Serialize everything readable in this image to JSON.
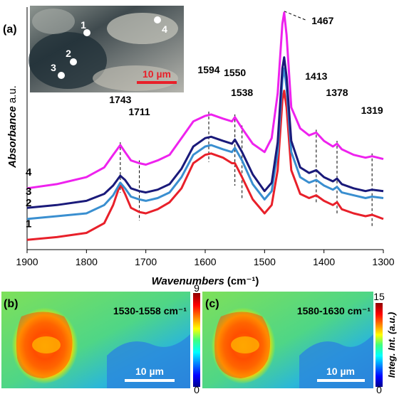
{
  "chart_data": [
    {
      "panel": "(a)",
      "type": "line",
      "xlabel": "Wavenumbers",
      "xlabel_unit": "(cm⁻¹)",
      "ylabel": "Absorbance",
      "ylabel_unit": "a.u.",
      "xlim": [
        1900,
        1300
      ],
      "x_reversed": true,
      "x_ticks": [
        "1900",
        "1800",
        "1700",
        "1600",
        "1500",
        "1400",
        "1300"
      ],
      "y_ticks_shown": false,
      "series": [
        {
          "name": "1",
          "color": "#e8202a",
          "points": [
            [
              1900,
              0.05
            ],
            [
              1850,
              0.07
            ],
            [
              1800,
              0.1
            ],
            [
              1770,
              0.17
            ],
            [
              1755,
              0.3
            ],
            [
              1743,
              0.45
            ],
            [
              1735,
              0.38
            ],
            [
              1725,
              0.28
            ],
            [
              1711,
              0.25
            ],
            [
              1700,
              0.24
            ],
            [
              1680,
              0.27
            ],
            [
              1660,
              0.32
            ],
            [
              1640,
              0.42
            ],
            [
              1620,
              0.6
            ],
            [
              1600,
              0.66
            ],
            [
              1590,
              0.67
            ],
            [
              1570,
              0.64
            ],
            [
              1555,
              0.6
            ],
            [
              1550,
              0.6
            ],
            [
              1538,
              0.5
            ],
            [
              1520,
              0.34
            ],
            [
              1500,
              0.24
            ],
            [
              1488,
              0.3
            ],
            [
              1478,
              0.55
            ],
            [
              1470,
              1.05
            ],
            [
              1467,
              1.12
            ],
            [
              1463,
              1.0
            ],
            [
              1455,
              0.55
            ],
            [
              1440,
              0.38
            ],
            [
              1425,
              0.35
            ],
            [
              1413,
              0.37
            ],
            [
              1400,
              0.33
            ],
            [
              1385,
              0.3
            ],
            [
              1378,
              0.32
            ],
            [
              1370,
              0.27
            ],
            [
              1350,
              0.24
            ],
            [
              1330,
              0.22
            ],
            [
              1319,
              0.23
            ],
            [
              1300,
              0.2
            ]
          ]
        },
        {
          "name": "2",
          "color": "#3a8fd0",
          "points": [
            [
              1900,
              0.2
            ],
            [
              1850,
              0.22
            ],
            [
              1800,
              0.24
            ],
            [
              1770,
              0.3
            ],
            [
              1755,
              0.37
            ],
            [
              1743,
              0.46
            ],
            [
              1735,
              0.42
            ],
            [
              1725,
              0.36
            ],
            [
              1711,
              0.34
            ],
            [
              1700,
              0.33
            ],
            [
              1680,
              0.35
            ],
            [
              1660,
              0.39
            ],
            [
              1640,
              0.5
            ],
            [
              1620,
              0.66
            ],
            [
              1600,
              0.72
            ],
            [
              1590,
              0.73
            ],
            [
              1570,
              0.7
            ],
            [
              1555,
              0.68
            ],
            [
              1550,
              0.71
            ],
            [
              1538,
              0.62
            ],
            [
              1520,
              0.45
            ],
            [
              1500,
              0.34
            ],
            [
              1488,
              0.4
            ],
            [
              1478,
              0.68
            ],
            [
              1470,
              1.2
            ],
            [
              1467,
              1.28
            ],
            [
              1463,
              1.14
            ],
            [
              1455,
              0.68
            ],
            [
              1440,
              0.5
            ],
            [
              1425,
              0.46
            ],
            [
              1413,
              0.48
            ],
            [
              1400,
              0.44
            ],
            [
              1385,
              0.41
            ],
            [
              1378,
              0.43
            ],
            [
              1370,
              0.39
            ],
            [
              1350,
              0.37
            ],
            [
              1330,
              0.35
            ],
            [
              1319,
              0.36
            ],
            [
              1300,
              0.35
            ]
          ]
        },
        {
          "name": "3",
          "color": "#1a1a7a",
          "points": [
            [
              1900,
              0.28
            ],
            [
              1850,
              0.3
            ],
            [
              1800,
              0.33
            ],
            [
              1770,
              0.38
            ],
            [
              1755,
              0.44
            ],
            [
              1743,
              0.51
            ],
            [
              1735,
              0.48
            ],
            [
              1725,
              0.42
            ],
            [
              1711,
              0.4
            ],
            [
              1700,
              0.39
            ],
            [
              1680,
              0.41
            ],
            [
              1660,
              0.45
            ],
            [
              1640,
              0.56
            ],
            [
              1620,
              0.72
            ],
            [
              1600,
              0.78
            ],
            [
              1590,
              0.79
            ],
            [
              1570,
              0.76
            ],
            [
              1555,
              0.74
            ],
            [
              1550,
              0.77
            ],
            [
              1538,
              0.68
            ],
            [
              1520,
              0.52
            ],
            [
              1500,
              0.4
            ],
            [
              1488,
              0.46
            ],
            [
              1478,
              0.75
            ],
            [
              1470,
              1.28
            ],
            [
              1467,
              1.36
            ],
            [
              1463,
              1.22
            ],
            [
              1455,
              0.76
            ],
            [
              1440,
              0.57
            ],
            [
              1425,
              0.53
            ],
            [
              1413,
              0.55
            ],
            [
              1400,
              0.5
            ],
            [
              1385,
              0.47
            ],
            [
              1378,
              0.49
            ],
            [
              1370,
              0.45
            ],
            [
              1350,
              0.42
            ],
            [
              1330,
              0.4
            ],
            [
              1319,
              0.41
            ],
            [
              1300,
              0.4
            ]
          ]
        },
        {
          "name": "4",
          "color": "#ee22ee",
          "points": [
            [
              1900,
              0.42
            ],
            [
              1850,
              0.45
            ],
            [
              1800,
              0.5
            ],
            [
              1770,
              0.57
            ],
            [
              1755,
              0.66
            ],
            [
              1743,
              0.73
            ],
            [
              1735,
              0.68
            ],
            [
              1725,
              0.62
            ],
            [
              1711,
              0.6
            ],
            [
              1700,
              0.59
            ],
            [
              1680,
              0.62
            ],
            [
              1660,
              0.66
            ],
            [
              1640,
              0.78
            ],
            [
              1620,
              0.9
            ],
            [
              1600,
              0.94
            ],
            [
              1590,
              0.95
            ],
            [
              1570,
              0.92
            ],
            [
              1555,
              0.9
            ],
            [
              1550,
              0.93
            ],
            [
              1538,
              0.85
            ],
            [
              1520,
              0.74
            ],
            [
              1500,
              0.68
            ],
            [
              1488,
              0.78
            ],
            [
              1478,
              1.1
            ],
            [
              1470,
              1.6
            ],
            [
              1467,
              1.68
            ],
            [
              1463,
              1.52
            ],
            [
              1455,
              1.0
            ],
            [
              1440,
              0.85
            ],
            [
              1425,
              0.8
            ],
            [
              1413,
              0.82
            ],
            [
              1400,
              0.76
            ],
            [
              1385,
              0.72
            ],
            [
              1378,
              0.74
            ],
            [
              1370,
              0.7
            ],
            [
              1350,
              0.66
            ],
            [
              1330,
              0.64
            ],
            [
              1319,
              0.65
            ],
            [
              1300,
              0.63
            ]
          ]
        }
      ],
      "series_labels_shown": [
        "1",
        "2",
        "3",
        "4"
      ],
      "annotations": [
        {
          "text": "1743",
          "x": 1743,
          "line": [
            0.45,
            0.73
          ]
        },
        {
          "text": "1711",
          "x": 1711,
          "line": [
            0.25,
            0.6
          ]
        },
        {
          "text": "1594",
          "x": 1594,
          "line": [
            0.67,
            0.95
          ]
        },
        {
          "text": "1550",
          "x": 1550,
          "line": [
            0.5,
            0.93
          ]
        },
        {
          "text": "1538",
          "x": 1538,
          "line": [
            0.4,
            0.85
          ]
        },
        {
          "text": "1467",
          "x": 1467,
          "line": [
            1.68,
            1.68
          ]
        },
        {
          "text": "1413",
          "x": 1413,
          "line": [
            0.37,
            0.82
          ]
        },
        {
          "text": "1378",
          "x": 1378,
          "line": [
            0.3,
            0.74
          ]
        },
        {
          "text": "1319",
          "x": 1319,
          "line": [
            0.2,
            0.65
          ]
        }
      ],
      "inset": {
        "kind": "microscope-image",
        "markers": [
          "1",
          "2",
          "3",
          "4"
        ],
        "scalebar_label": "10 µm",
        "scalebar_color": "#e8202a"
      }
    },
    {
      "panel": "(b)",
      "type": "heatmap",
      "title": "1530-1558 cm⁻¹",
      "colorbar_ticks": [
        "9",
        "0"
      ],
      "colorbar_range": [
        0,
        9
      ],
      "scalebar_label": "10 µm",
      "colormap": "jet"
    },
    {
      "panel": "(c)",
      "type": "heatmap",
      "title": "1580-1630 cm⁻¹",
      "colorbar_ticks": [
        "15",
        "0"
      ],
      "colorbar_range": [
        0,
        15
      ],
      "colorbar_label": "Integ. Int. (a.u.)",
      "scalebar_label": "10 µm",
      "colormap": "jet"
    }
  ]
}
